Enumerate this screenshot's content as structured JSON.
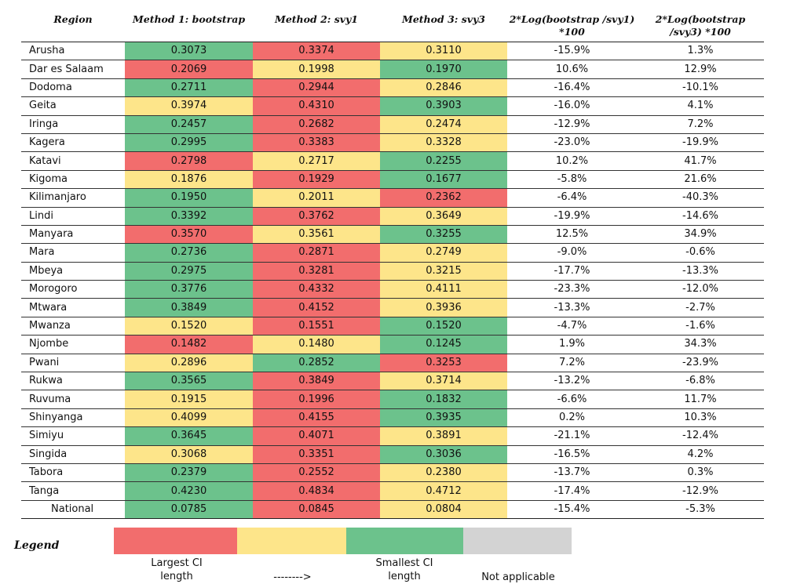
{
  "table": {
    "headers": [
      "Region",
      "Method 1: bootstrap",
      "Method 2: svy1",
      "Method 3: svy3",
      "2*Log(bootstrap /svy1) *100",
      "2*Log(bootstrap /svy3) *100"
    ],
    "rows": [
      {
        "region": "Arusha",
        "m1": "0.3073",
        "m1c": "green",
        "m2": "0.3374",
        "m2c": "red",
        "m3": "0.3110",
        "m3c": "yellow",
        "r1": "-15.9%",
        "r2": "1.3%"
      },
      {
        "region": "Dar es Salaam",
        "m1": "0.2069",
        "m1c": "red",
        "m2": "0.1998",
        "m2c": "yellow",
        "m3": "0.1970",
        "m3c": "green",
        "r1": "10.6%",
        "r2": "12.9%"
      },
      {
        "region": "Dodoma",
        "m1": "0.2711",
        "m1c": "green",
        "m2": "0.2944",
        "m2c": "red",
        "m3": "0.2846",
        "m3c": "yellow",
        "r1": "-16.4%",
        "r2": "-10.1%"
      },
      {
        "region": "Geita",
        "m1": "0.3974",
        "m1c": "yellow",
        "m2": "0.4310",
        "m2c": "red",
        "m3": "0.3903",
        "m3c": "green",
        "r1": "-16.0%",
        "r2": "4.1%"
      },
      {
        "region": "Iringa",
        "m1": "0.2457",
        "m1c": "green",
        "m2": "0.2682",
        "m2c": "red",
        "m3": "0.2474",
        "m3c": "yellow",
        "r1": "-12.9%",
        "r2": "7.2%"
      },
      {
        "region": "Kagera",
        "m1": "0.2995",
        "m1c": "green",
        "m2": "0.3383",
        "m2c": "red",
        "m3": "0.3328",
        "m3c": "yellow",
        "r1": "-23.0%",
        "r2": "-19.9%"
      },
      {
        "region": "Katavi",
        "m1": "0.2798",
        "m1c": "red",
        "m2": "0.2717",
        "m2c": "yellow",
        "m3": "0.2255",
        "m3c": "green",
        "r1": "10.2%",
        "r2": "41.7%"
      },
      {
        "region": "Kigoma",
        "m1": "0.1876",
        "m1c": "yellow",
        "m2": "0.1929",
        "m2c": "red",
        "m3": "0.1677",
        "m3c": "green",
        "r1": "-5.8%",
        "r2": "21.6%"
      },
      {
        "region": "Kilimanjaro",
        "m1": "0.1950",
        "m1c": "green",
        "m2": "0.2011",
        "m2c": "yellow",
        "m3": "0.2362",
        "m3c": "red",
        "r1": "-6.4%",
        "r2": "-40.3%"
      },
      {
        "region": "Lindi",
        "m1": "0.3392",
        "m1c": "green",
        "m2": "0.3762",
        "m2c": "red",
        "m3": "0.3649",
        "m3c": "yellow",
        "r1": "-19.9%",
        "r2": "-14.6%"
      },
      {
        "region": "Manyara",
        "m1": "0.3570",
        "m1c": "red",
        "m2": "0.3561",
        "m2c": "yellow",
        "m3": "0.3255",
        "m3c": "green",
        "r1": "12.5%",
        "r2": "34.9%"
      },
      {
        "region": "Mara",
        "m1": "0.2736",
        "m1c": "green",
        "m2": "0.2871",
        "m2c": "red",
        "m3": "0.2749",
        "m3c": "yellow",
        "r1": "-9.0%",
        "r2": "-0.6%"
      },
      {
        "region": "Mbeya",
        "m1": "0.2975",
        "m1c": "green",
        "m2": "0.3281",
        "m2c": "red",
        "m3": "0.3215",
        "m3c": "yellow",
        "r1": "-17.7%",
        "r2": "-13.3%"
      },
      {
        "region": "Morogoro",
        "m1": "0.3776",
        "m1c": "green",
        "m2": "0.4332",
        "m2c": "red",
        "m3": "0.4111",
        "m3c": "yellow",
        "r1": "-23.3%",
        "r2": "-12.0%"
      },
      {
        "region": "Mtwara",
        "m1": "0.3849",
        "m1c": "green",
        "m2": "0.4152",
        "m2c": "red",
        "m3": "0.3936",
        "m3c": "yellow",
        "r1": "-13.3%",
        "r2": "-2.7%"
      },
      {
        "region": "Mwanza",
        "m1": "0.1520",
        "m1c": "yellow",
        "m2": "0.1551",
        "m2c": "red",
        "m3": "0.1520",
        "m3c": "green",
        "r1": "-4.7%",
        "r2": "-1.6%"
      },
      {
        "region": "Njombe",
        "m1": "0.1482",
        "m1c": "red",
        "m2": "0.1480",
        "m2c": "yellow",
        "m3": "0.1245",
        "m3c": "green",
        "r1": "1.9%",
        "r2": "34.3%"
      },
      {
        "region": "Pwani",
        "m1": "0.2896",
        "m1c": "yellow",
        "m2": "0.2852",
        "m2c": "green",
        "m3": "0.3253",
        "m3c": "red",
        "r1": "7.2%",
        "r2": "-23.9%"
      },
      {
        "region": "Rukwa",
        "m1": "0.3565",
        "m1c": "green",
        "m2": "0.3849",
        "m2c": "red",
        "m3": "0.3714",
        "m3c": "yellow",
        "r1": "-13.2%",
        "r2": "-6.8%"
      },
      {
        "region": "Ruvuma",
        "m1": "0.1915",
        "m1c": "yellow",
        "m2": "0.1996",
        "m2c": "red",
        "m3": "0.1832",
        "m3c": "green",
        "r1": "-6.6%",
        "r2": "11.7%"
      },
      {
        "region": "Shinyanga",
        "m1": "0.4099",
        "m1c": "yellow",
        "m2": "0.4155",
        "m2c": "red",
        "m3": "0.3935",
        "m3c": "green",
        "r1": "0.2%",
        "r2": "10.3%"
      },
      {
        "region": "Simiyu",
        "m1": "0.3645",
        "m1c": "green",
        "m2": "0.4071",
        "m2c": "red",
        "m3": "0.3891",
        "m3c": "yellow",
        "r1": "-21.1%",
        "r2": "-12.4%"
      },
      {
        "region": "Singida",
        "m1": "0.3068",
        "m1c": "yellow",
        "m2": "0.3351",
        "m2c": "red",
        "m3": "0.3036",
        "m3c": "green",
        "r1": "-16.5%",
        "r2": "4.2%"
      },
      {
        "region": "Tabora",
        "m1": "0.2379",
        "m1c": "green",
        "m2": "0.2552",
        "m2c": "red",
        "m3": "0.2380",
        "m3c": "yellow",
        "r1": "-13.7%",
        "r2": "0.3%"
      },
      {
        "region": "Tanga",
        "m1": "0.4230",
        "m1c": "green",
        "m2": "0.4834",
        "m2c": "red",
        "m3": "0.4712",
        "m3c": "yellow",
        "r1": "-17.4%",
        "r2": "-12.9%"
      },
      {
        "region": "National",
        "m1": "0.0785",
        "m1c": "green",
        "m2": "0.0845",
        "m2c": "red",
        "m3": "0.0804",
        "m3c": "yellow",
        "r1": "-15.4%",
        "r2": "-5.3%"
      }
    ]
  },
  "legend": {
    "title": "Legend",
    "largest_label": "Largest CI length",
    "arrow": "-------->",
    "smallest_label": "Smallest CI length",
    "na_label": "Not applicable"
  },
  "colors": {
    "red": "#f26d6d",
    "yellow": "#fde58a",
    "green": "#6cc28c",
    "gray": "#d3d3d3"
  }
}
